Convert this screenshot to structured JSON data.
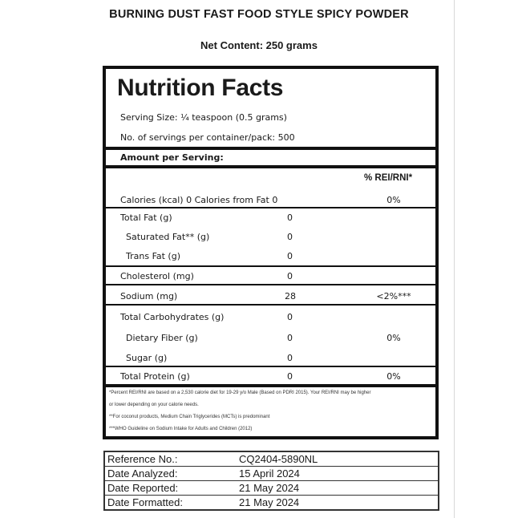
{
  "product_title": "BURNING DUST FAST FOOD STYLE SPICY POWDER",
  "net_content": "Net Content: 250 grams",
  "panel": {
    "heading": "Nutrition Facts",
    "serving_size": "Serving Size: ¼ teaspoon (0.5 grams)",
    "servings_per_container": "No. of servings per container/pack: 500",
    "amount_per_serving": "Amount per Serving:",
    "rei_header": "% REI/RNI*",
    "calories": {
      "label": "Calories  (kcal)  0   Calories from Fat  0",
      "rei": "0%"
    },
    "rows": [
      {
        "label": "Total Fat  (g)",
        "value": "0",
        "rei": ""
      },
      {
        "label": "Saturated Fat**  (g)",
        "value": "0",
        "rei": ""
      },
      {
        "label": "Trans Fat  (g)",
        "value": "0",
        "rei": ""
      },
      {
        "label": "Cholesterol  (mg)",
        "value": "0",
        "rei": ""
      },
      {
        "label": "Sodium  (mg)",
        "value": "28",
        "rei": "<2%***"
      },
      {
        "label": "Total Carbohydrates  (g)",
        "value": "0",
        "rei": ""
      },
      {
        "label": "Dietary Fiber  (g)",
        "value": "0",
        "rei": "0%"
      },
      {
        "label": "Sugar  (g)",
        "value": "0",
        "rei": ""
      },
      {
        "label": "Total Protein  (g)",
        "value": "0",
        "rei": "0%"
      }
    ],
    "footnotes": [
      "*Percent REI/RNI are based on a 2,530 calorie diet for 19-29 y/o Male (Based on PDRI 2015). Your REI/RNI may be higher",
      "or lower depending on your calorie needs.",
      "**For coconut products, Medium Chain Triglycerides (MCTs) is predominant",
      "***WHO Guideline on Sodium Intake for Adults and Children (2012)"
    ]
  },
  "reference": [
    {
      "label": "Reference No.:",
      "value": "CQ2404-5890NL"
    },
    {
      "label": "Date Analyzed:",
      "value": "15 April 2024"
    },
    {
      "label": "Date Reported:",
      "value": "21 May 2024"
    },
    {
      "label": "Date Formatted:",
      "value": "21 May 2024"
    }
  ]
}
